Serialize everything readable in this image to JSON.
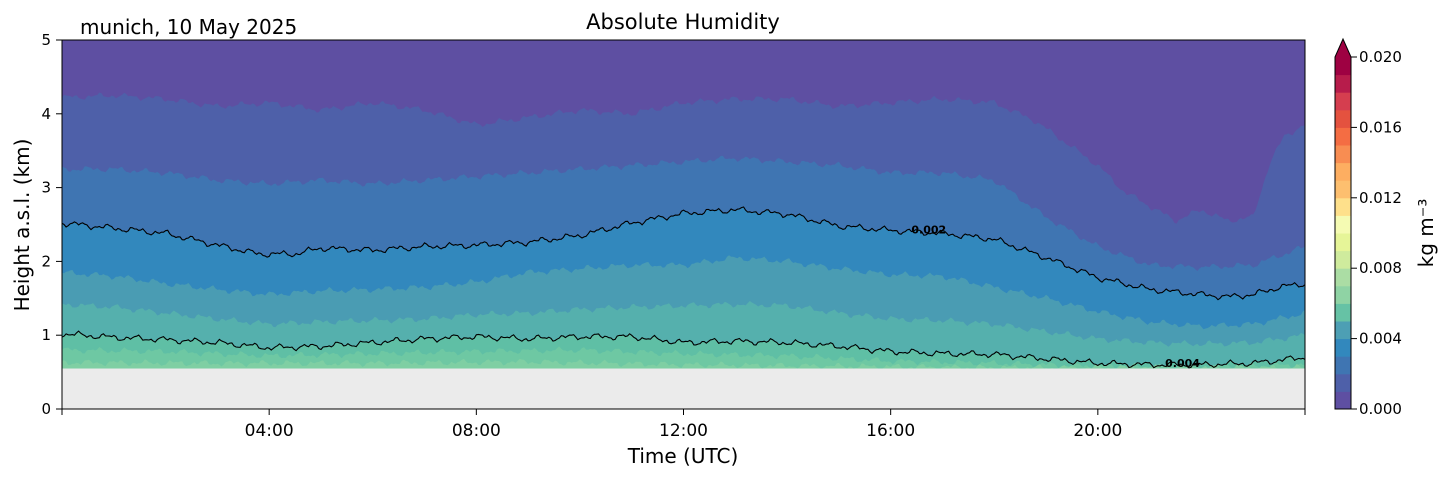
{
  "location_date": "munich, 10 May 2025",
  "chart_data": {
    "type": "heatmap",
    "subtype": "filled-contour",
    "title": "Absolute Humidity",
    "xlabel": "Time (UTC)",
    "ylabel": "Height a.s.l. (km)",
    "xlim_hours": [
      0,
      24
    ],
    "ylim": [
      0,
      5
    ],
    "x_ticks": [
      {
        "hour": 4,
        "label": "04:00"
      },
      {
        "hour": 8,
        "label": "08:00"
      },
      {
        "hour": 12,
        "label": "12:00"
      },
      {
        "hour": 16,
        "label": "16:00"
      },
      {
        "hour": 20,
        "label": "20:00"
      }
    ],
    "y_ticks": [
      {
        "value": 0,
        "label": "0"
      },
      {
        "value": 1,
        "label": "1"
      },
      {
        "value": 2,
        "label": "2"
      },
      {
        "value": 3,
        "label": "3"
      },
      {
        "value": 4,
        "label": "4"
      },
      {
        "value": 5,
        "label": "5"
      }
    ],
    "no_data_below_km": 0.55,
    "colormap": "Spectral_r",
    "colorbar": {
      "label": "kg m⁻³",
      "range": [
        0.0,
        0.02
      ],
      "extend": "max",
      "ticks": [
        {
          "value": 0.0,
          "label": "0.000"
        },
        {
          "value": 0.004,
          "label": "0.004"
        },
        {
          "value": 0.008,
          "label": "0.008"
        },
        {
          "value": 0.012,
          "label": "0.012"
        },
        {
          "value": 0.016,
          "label": "0.016"
        },
        {
          "value": 0.02,
          "label": "0.020"
        }
      ],
      "colors": [
        "#5e4fa2",
        "#4e60a9",
        "#3f75b2",
        "#3288bd",
        "#4d9fb4",
        "#66c2a5",
        "#8fd3a4",
        "#abdda4",
        "#cfeb9d",
        "#e6f598",
        "#f5fbb3",
        "#fee08b",
        "#fdbf6f",
        "#fdae61",
        "#f88d52",
        "#f46d43",
        "#e4523f",
        "#d53e4f",
        "#b71c4b",
        "#9e0142"
      ]
    },
    "contour_lines": [
      {
        "label": "0.002",
        "label_hour": 16.4,
        "label_height": 2.43,
        "points": [
          [
            0,
            2.52
          ],
          [
            1,
            2.45
          ],
          [
            2,
            2.38
          ],
          [
            3,
            2.22
          ],
          [
            3.8,
            2.1
          ],
          [
            4.5,
            2.1
          ],
          [
            5,
            2.18
          ],
          [
            6,
            2.15
          ],
          [
            7,
            2.2
          ],
          [
            8,
            2.22
          ],
          [
            9,
            2.26
          ],
          [
            10,
            2.35
          ],
          [
            11,
            2.52
          ],
          [
            12,
            2.65
          ],
          [
            13,
            2.7
          ],
          [
            14,
            2.64
          ],
          [
            15,
            2.48
          ],
          [
            16,
            2.42
          ],
          [
            17,
            2.38
          ],
          [
            18,
            2.3
          ],
          [
            19,
            2.05
          ],
          [
            20,
            1.78
          ],
          [
            21,
            1.62
          ],
          [
            22,
            1.55
          ],
          [
            22.5,
            1.52
          ],
          [
            23,
            1.55
          ],
          [
            23.5,
            1.65
          ],
          [
            24,
            1.7
          ]
        ]
      },
      {
        "label": "0.004",
        "label_hour": 21.3,
        "label_height": 0.62,
        "points": [
          [
            0,
            1.02
          ],
          [
            1,
            0.97
          ],
          [
            2,
            0.94
          ],
          [
            3,
            0.9
          ],
          [
            4,
            0.83
          ],
          [
            5,
            0.85
          ],
          [
            6,
            0.9
          ],
          [
            7,
            0.95
          ],
          [
            8,
            0.98
          ],
          [
            9,
            0.95
          ],
          [
            10,
            0.98
          ],
          [
            11,
            0.98
          ],
          [
            12,
            0.9
          ],
          [
            13,
            0.92
          ],
          [
            14,
            0.9
          ],
          [
            15,
            0.85
          ],
          [
            16,
            0.78
          ],
          [
            17,
            0.75
          ],
          [
            18,
            0.74
          ],
          [
            19,
            0.68
          ],
          [
            20,
            0.62
          ],
          [
            21,
            0.6
          ],
          [
            22,
            0.6
          ],
          [
            23,
            0.62
          ],
          [
            24,
            0.7
          ]
        ]
      }
    ],
    "bands": [
      {
        "color": "#4e60a9",
        "upper": [
          [
            0,
            4.22
          ],
          [
            1,
            4.25
          ],
          [
            2,
            4.2
          ],
          [
            3,
            4.1
          ],
          [
            4,
            4.15
          ],
          [
            5,
            4.05
          ],
          [
            6,
            4.15
          ],
          [
            7,
            4.05
          ],
          [
            8,
            3.85
          ],
          [
            9,
            3.95
          ],
          [
            10,
            4.05
          ],
          [
            11,
            4.0
          ],
          [
            12,
            4.15
          ],
          [
            13,
            4.2
          ],
          [
            14,
            4.2
          ],
          [
            15,
            4.1
          ],
          [
            16,
            4.15
          ],
          [
            17,
            4.2
          ],
          [
            18,
            4.15
          ],
          [
            18.8,
            3.9
          ],
          [
            19.5,
            3.55
          ],
          [
            20,
            3.3
          ],
          [
            20.5,
            2.95
          ],
          [
            21,
            2.75
          ],
          [
            21.5,
            2.55
          ],
          [
            22,
            2.7
          ],
          [
            22.5,
            2.55
          ],
          [
            23,
            2.6
          ],
          [
            23.3,
            3.3
          ],
          [
            23.6,
            3.7
          ],
          [
            24,
            3.85
          ]
        ]
      },
      {
        "color": "#3f75b2",
        "upper": [
          [
            0,
            3.25
          ],
          [
            1,
            3.25
          ],
          [
            2,
            3.2
          ],
          [
            3,
            3.1
          ],
          [
            4,
            3.05
          ],
          [
            5,
            3.1
          ],
          [
            6,
            3.05
          ],
          [
            7,
            3.1
          ],
          [
            8,
            3.15
          ],
          [
            9,
            3.2
          ],
          [
            10,
            3.25
          ],
          [
            11,
            3.3
          ],
          [
            12,
            3.35
          ],
          [
            13,
            3.4
          ],
          [
            14,
            3.35
          ],
          [
            15,
            3.3
          ],
          [
            16,
            3.2
          ],
          [
            17,
            3.2
          ],
          [
            18,
            3.1
          ],
          [
            19,
            2.6
          ],
          [
            20,
            2.2
          ],
          [
            21,
            1.95
          ],
          [
            22,
            1.92
          ],
          [
            23,
            1.95
          ],
          [
            24,
            2.2
          ]
        ]
      },
      {
        "color": "#3288bd",
        "upper": [
          [
            0,
            2.52
          ],
          [
            1,
            2.45
          ],
          [
            2,
            2.38
          ],
          [
            3,
            2.22
          ],
          [
            3.8,
            2.1
          ],
          [
            4.5,
            2.1
          ],
          [
            5,
            2.18
          ],
          [
            6,
            2.15
          ],
          [
            7,
            2.2
          ],
          [
            8,
            2.22
          ],
          [
            9,
            2.26
          ],
          [
            10,
            2.35
          ],
          [
            11,
            2.52
          ],
          [
            12,
            2.65
          ],
          [
            13,
            2.7
          ],
          [
            14,
            2.64
          ],
          [
            15,
            2.48
          ],
          [
            16,
            2.42
          ],
          [
            17,
            2.38
          ],
          [
            18,
            2.3
          ],
          [
            19,
            2.05
          ],
          [
            20,
            1.78
          ],
          [
            21,
            1.62
          ],
          [
            22,
            1.55
          ],
          [
            22.5,
            1.52
          ],
          [
            23,
            1.55
          ],
          [
            23.5,
            1.65
          ],
          [
            24,
            1.7
          ]
        ]
      },
      {
        "color": "#4a9cb3",
        "upper": [
          [
            0,
            1.85
          ],
          [
            1,
            1.8
          ],
          [
            2,
            1.7
          ],
          [
            3,
            1.62
          ],
          [
            4,
            1.55
          ],
          [
            5,
            1.6
          ],
          [
            6,
            1.62
          ],
          [
            7,
            1.65
          ],
          [
            8,
            1.72
          ],
          [
            9,
            1.85
          ],
          [
            10,
            1.9
          ],
          [
            11,
            1.95
          ],
          [
            12,
            1.95
          ],
          [
            13,
            2.05
          ],
          [
            14,
            2.0
          ],
          [
            15,
            1.9
          ],
          [
            16,
            1.82
          ],
          [
            17,
            1.8
          ],
          [
            18,
            1.65
          ],
          [
            19,
            1.5
          ],
          [
            20,
            1.32
          ],
          [
            21,
            1.18
          ],
          [
            22,
            1.12
          ],
          [
            23,
            1.15
          ],
          [
            24,
            1.3
          ]
        ]
      },
      {
        "color": "#55b0ad",
        "upper": [
          [
            0,
            1.42
          ],
          [
            1,
            1.38
          ],
          [
            2,
            1.3
          ],
          [
            3,
            1.22
          ],
          [
            4,
            1.15
          ],
          [
            5,
            1.18
          ],
          [
            6,
            1.2
          ],
          [
            7,
            1.22
          ],
          [
            8,
            1.28
          ],
          [
            9,
            1.3
          ],
          [
            10,
            1.35
          ],
          [
            11,
            1.38
          ],
          [
            12,
            1.4
          ],
          [
            13,
            1.42
          ],
          [
            14,
            1.4
          ],
          [
            15,
            1.3
          ],
          [
            16,
            1.22
          ],
          [
            17,
            1.2
          ],
          [
            18,
            1.15
          ],
          [
            19,
            1.05
          ],
          [
            20,
            0.95
          ],
          [
            21,
            0.9
          ],
          [
            22,
            0.88
          ],
          [
            23,
            0.9
          ],
          [
            24,
            1.0
          ]
        ]
      },
      {
        "color": "#5fbfa5",
        "upper": [
          [
            0,
            1.02
          ],
          [
            1,
            0.97
          ],
          [
            2,
            0.94
          ],
          [
            3,
            0.9
          ],
          [
            4,
            0.83
          ],
          [
            5,
            0.85
          ],
          [
            6,
            0.9
          ],
          [
            7,
            0.95
          ],
          [
            8,
            0.98
          ],
          [
            9,
            0.95
          ],
          [
            10,
            0.98
          ],
          [
            11,
            0.98
          ],
          [
            12,
            0.9
          ],
          [
            13,
            0.92
          ],
          [
            14,
            0.9
          ],
          [
            15,
            0.85
          ],
          [
            16,
            0.78
          ],
          [
            17,
            0.75
          ],
          [
            18,
            0.74
          ],
          [
            19,
            0.68
          ],
          [
            20,
            0.62
          ],
          [
            21,
            0.6
          ],
          [
            22,
            0.6
          ],
          [
            23,
            0.62
          ],
          [
            24,
            0.7
          ]
        ]
      },
      {
        "color": "#6ec8a3",
        "upper": [
          [
            0,
            0.8
          ],
          [
            2,
            0.78
          ],
          [
            4,
            0.72
          ],
          [
            6,
            0.75
          ],
          [
            8,
            0.78
          ],
          [
            10,
            0.8
          ],
          [
            12,
            0.75
          ],
          [
            14,
            0.72
          ],
          [
            16,
            0.65
          ],
          [
            18,
            0.62
          ],
          [
            20,
            0.58
          ],
          [
            22,
            0.57
          ],
          [
            24,
            0.6
          ]
        ]
      },
      {
        "color": "#7fcfa3",
        "upper": [
          [
            0,
            0.63
          ],
          [
            3,
            0.62
          ],
          [
            6,
            0.62
          ],
          [
            9,
            0.64
          ],
          [
            12,
            0.6
          ],
          [
            15,
            0.58
          ],
          [
            18,
            0.56
          ],
          [
            21,
            0.56
          ],
          [
            24,
            0.56
          ]
        ]
      }
    ],
    "top_band_color": "#5e4fa2"
  }
}
